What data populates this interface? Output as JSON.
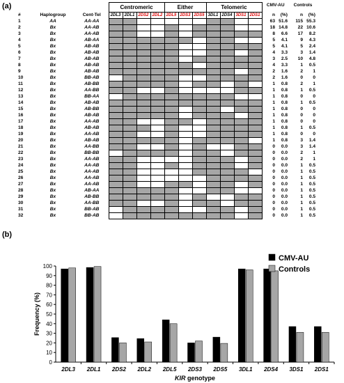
{
  "panel_a": {
    "label": "(a)",
    "headers": {
      "number": "#",
      "haplogroup": "Haplogroup",
      "cent_tel": "Cent-Tel",
      "centromeric": "Centromeric",
      "either": "Either",
      "telomeric": "Telomeric",
      "cmv": "CMV-AU",
      "controls": "Controls",
      "n": "n",
      "pct": "(%)"
    },
    "genes": [
      {
        "name": "2DL3",
        "red": false
      },
      {
        "name": "2DL1",
        "red": false
      },
      {
        "name": "2DS2",
        "red": true
      },
      {
        "name": "2DL2",
        "red": true
      },
      {
        "name": "2DL5",
        "red": true
      },
      {
        "name": "2DS3",
        "red": true
      },
      {
        "name": "2DS5",
        "red": true
      },
      {
        "name": "3DL1",
        "red": false
      },
      {
        "name": "2DS4",
        "red": false
      },
      {
        "name": "3DS1",
        "red": true
      },
      {
        "name": "2DS1",
        "red": true
      }
    ],
    "rows": [
      {
        "id": "1",
        "hg": "AA",
        "ct": "AA-AA",
        "p": "11000001100",
        "cn": "63",
        "cp": "51.6",
        "kn": "115",
        "kp": "55.3"
      },
      {
        "id": "2",
        "hg": "Bx",
        "ct": "AA-AB",
        "p": "11001011100",
        "cn": "18",
        "cp": "14.8",
        "kn": "22",
        "kp": "10.6"
      },
      {
        "id": "3",
        "hg": "Bx",
        "ct": "AA-AB",
        "p": "11001011111",
        "cn": "8",
        "cp": "6.6",
        "kn": "17",
        "kp": "8.2"
      },
      {
        "id": "4",
        "hg": "Bx",
        "ct": "AB-AA",
        "p": "11111101100",
        "cn": "5",
        "cp": "4.1",
        "kn": "9",
        "kp": "4.3"
      },
      {
        "id": "5",
        "hg": "Bx",
        "ct": "AB-AB",
        "p": "11111001111",
        "cn": "5",
        "cp": "4.1",
        "kn": "5",
        "kp": "2.4"
      },
      {
        "id": "6",
        "hg": "Bx",
        "ct": "AB-AB",
        "p": "11111001101",
        "cn": "4",
        "cp": "3.3",
        "kn": "3",
        "kp": "1.4"
      },
      {
        "id": "7",
        "hg": "Bx",
        "ct": "AB-AB",
        "p": "11111011111",
        "cn": "3",
        "cp": "2.5",
        "kn": "10",
        "kp": "4.8"
      },
      {
        "id": "8",
        "hg": "Bx",
        "ct": "AB-AB",
        "p": "11111101111",
        "cn": "4",
        "cp": "3.3",
        "kn": "1",
        "kp": "0.5"
      },
      {
        "id": "9",
        "hg": "Bx",
        "ct": "AB-AB",
        "p": "11111111101",
        "cn": "2",
        "cp": "1.6",
        "kn": "2",
        "kp": "1"
      },
      {
        "id": "10",
        "hg": "Bx",
        "ct": "BB-AB",
        "p": "01111001111",
        "cn": "2",
        "cp": "1.6",
        "kn": "0",
        "kp": "0"
      },
      {
        "id": "11",
        "hg": "Bx",
        "ct": "AB-BB",
        "p": "11111011010",
        "cn": "1",
        "cp": "0.8",
        "kn": "2",
        "kp": "1"
      },
      {
        "id": "12",
        "hg": "Bx",
        "ct": "AA-BB",
        "p": "11001000011",
        "cn": "1",
        "cp": "0.8",
        "kn": "1",
        "kp": "0.5"
      },
      {
        "id": "13",
        "hg": "Bx",
        "ct": "BB-AA",
        "p": "01111111100",
        "cn": "1",
        "cp": "0.8",
        "kn": "0",
        "kp": "0"
      },
      {
        "id": "14",
        "hg": "Bx",
        "ct": "AB-AB",
        "p": "11111111111",
        "cn": "1",
        "cp": "0.8",
        "kn": "1",
        "kp": "0.5"
      },
      {
        "id": "15",
        "hg": "Bx",
        "ct": "AB-BB",
        "p": "11111011011",
        "cn": "1",
        "cp": "0.8",
        "kn": "0",
        "kp": "0"
      },
      {
        "id": "16",
        "hg": "Bx",
        "ct": "AB-AB",
        "p": "11111011101",
        "cn": "1",
        "cp": "0.8",
        "kn": "0",
        "kp": "0"
      },
      {
        "id": "17",
        "hg": "Bx",
        "ct": "AA-AB",
        "p": "11001101111",
        "cn": "1",
        "cp": "0.8",
        "kn": "0",
        "kp": "0"
      },
      {
        "id": "18",
        "hg": "Bx",
        "ct": "AB-AB",
        "p": "11101001111",
        "cn": "1",
        "cp": "0.8",
        "kn": "1",
        "kp": "0.5"
      },
      {
        "id": "19",
        "hg": "Bx",
        "ct": "AA-AB",
        "p": "11001001111",
        "cn": "1",
        "cp": "0.8",
        "kn": "0",
        "kp": "0"
      },
      {
        "id": "20",
        "hg": "Bx",
        "ct": "AB-AB",
        "p": "11111011110",
        "cn": "1",
        "cp": "0.8",
        "kn": "3",
        "kp": "1.4"
      },
      {
        "id": "21",
        "hg": "Bx",
        "ct": "AA-BB",
        "p": "11001010011",
        "cn": "0",
        "cp": "0.0",
        "kn": "3",
        "kp": "1.4"
      },
      {
        "id": "22",
        "hg": "Bx",
        "ct": "BB-BB",
        "p": "01111011011",
        "cn": "0",
        "cp": "0.0",
        "kn": "2",
        "kp": "1"
      },
      {
        "id": "23",
        "hg": "Bx",
        "ct": "AA-AB",
        "p": "11000011101",
        "cn": "0",
        "cp": "0.0",
        "kn": "2",
        "kp": "1"
      },
      {
        "id": "24",
        "hg": "Bx",
        "ct": "AA-AB",
        "p": "11001011101",
        "cn": "0",
        "cp": "0.0",
        "kn": "1",
        "kp": "0.5"
      },
      {
        "id": "25",
        "hg": "Bx",
        "ct": "AA-AB",
        "p": "11000011110",
        "cn": "0",
        "cp": "0.0",
        "kn": "1",
        "kp": "0.5"
      },
      {
        "id": "26",
        "hg": "Bx",
        "ct": "AA-AB",
        "p": "11000001111",
        "cn": "0",
        "cp": "0.0",
        "kn": "1",
        "kp": "0.5"
      },
      {
        "id": "27",
        "hg": "Bx",
        "ct": "AA-AB",
        "p": "11001101101",
        "cn": "0",
        "cp": "0.0",
        "kn": "1",
        "kp": "0.5"
      },
      {
        "id": "28",
        "hg": "Bx",
        "ct": "AB-AA",
        "p": "11111001100",
        "cn": "0",
        "cp": "0.0",
        "kn": "1",
        "kp": "0.5"
      },
      {
        "id": "29",
        "hg": "Bx",
        "ct": "AB-BB",
        "p": "11111010011",
        "cn": "0",
        "cp": "0.0",
        "kn": "1",
        "kp": "0.5"
      },
      {
        "id": "30",
        "hg": "Bx",
        "ct": "AA-BB",
        "p": "11001011011",
        "cn": "0",
        "cp": "0.0",
        "kn": "1",
        "kp": "0.5"
      },
      {
        "id": "31",
        "hg": "Bx",
        "ct": "BB-AB",
        "p": "01111001101",
        "cn": "0",
        "cp": "0.0",
        "kn": "1",
        "kp": "0.5"
      },
      {
        "id": "32",
        "hg": "Bx",
        "ct": "BB-AB",
        "p": "01111111101",
        "cn": "0",
        "cp": "0.0",
        "kn": "1",
        "kp": "0.5"
      }
    ]
  },
  "panel_b": {
    "label": "(b)"
  },
  "chart_data": {
    "type": "bar",
    "categories": [
      "2DL3",
      "2DL1",
      "2DS2",
      "2DL2",
      "2DL5",
      "2DS3",
      "2DS5",
      "3DL1",
      "2DS4",
      "3DS1",
      "2DS1"
    ],
    "series": [
      {
        "name": "CMV-AU",
        "color": "#000000",
        "values": [
          97,
          98.5,
          25.5,
          24.5,
          44,
          20,
          26,
          97,
          97,
          37,
          37
        ]
      },
      {
        "name": "Controls",
        "color": "#a6a6a6",
        "values": [
          98,
          99.5,
          20,
          21,
          40,
          22,
          19.5,
          96,
          95,
          31,
          31
        ]
      }
    ],
    "xlabel": "KIR genotype",
    "ylabel": "Frequency (%)",
    "ylim": [
      0,
      100
    ],
    "yticks": [
      0,
      10,
      20,
      30,
      40,
      50,
      60,
      70,
      80,
      90,
      100
    ],
    "legend_position": "top-right",
    "grid": false
  }
}
